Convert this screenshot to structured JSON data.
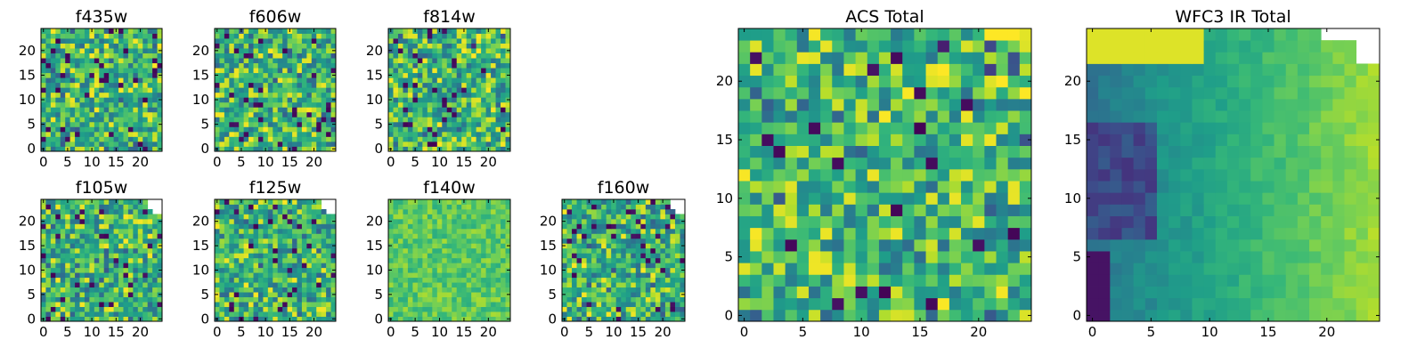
{
  "chart_data": [
    {
      "type": "heatmap",
      "title": "f435w",
      "xticks": [
        0,
        5,
        10,
        15,
        20
      ],
      "yticks": [
        0,
        5,
        10,
        15,
        20
      ],
      "xlim": [
        -0.5,
        24.5
      ],
      "ylim": [
        -0.5,
        24.5
      ],
      "pattern": "noise",
      "seed": 11,
      "colormap": "viridis",
      "grid": false
    },
    {
      "type": "heatmap",
      "title": "f606w",
      "xticks": [
        0,
        5,
        10,
        15,
        20
      ],
      "yticks": [
        0,
        5,
        10,
        15,
        20
      ],
      "xlim": [
        -0.5,
        24.5
      ],
      "ylim": [
        -0.5,
        24.5
      ],
      "pattern": "noise",
      "seed": 23,
      "colormap": "viridis",
      "grid": false
    },
    {
      "type": "heatmap",
      "title": "f814w",
      "xticks": [
        0,
        5,
        10,
        15,
        20
      ],
      "yticks": [
        0,
        5,
        10,
        15,
        20
      ],
      "xlim": [
        -0.5,
        24.5
      ],
      "ylim": [
        -0.5,
        24.5
      ],
      "pattern": "noise-bright-corner",
      "seed": 37,
      "colormap": "viridis",
      "grid": false
    },
    {
      "type": "heatmap",
      "title": "f105w",
      "xticks": [
        0,
        5,
        10,
        15,
        20
      ],
      "yticks": [
        0,
        5,
        10,
        15,
        20
      ],
      "xlim": [
        -0.5,
        24.5
      ],
      "ylim": [
        -0.5,
        24.5
      ],
      "pattern": "noise-masked-corner",
      "seed": 41,
      "colormap": "viridis",
      "grid": false
    },
    {
      "type": "heatmap",
      "title": "f125w",
      "xticks": [
        0,
        5,
        10,
        15,
        20
      ],
      "yticks": [
        0,
        5,
        10,
        15,
        20
      ],
      "xlim": [
        -0.5,
        24.5
      ],
      "ylim": [
        -0.5,
        24.5
      ],
      "pattern": "noise-masked-corner",
      "seed": 53,
      "colormap": "viridis",
      "grid": false
    },
    {
      "type": "heatmap",
      "title": "f140w",
      "xticks": [
        0,
        5,
        10,
        15,
        20
      ],
      "yticks": [
        0,
        5,
        10,
        15,
        20
      ],
      "xlim": [
        -0.5,
        24.5
      ],
      "ylim": [
        -0.5,
        24.5
      ],
      "pattern": "smooth-bright",
      "seed": 67,
      "colormap": "viridis",
      "grid": false
    },
    {
      "type": "heatmap",
      "title": "f160w",
      "xticks": [
        0,
        5,
        10,
        15,
        20
      ],
      "yticks": [
        0,
        5,
        10,
        15,
        20
      ],
      "xlim": [
        -0.5,
        24.5
      ],
      "ylim": [
        -0.5,
        24.5
      ],
      "pattern": "noise-masked-corner",
      "seed": 79,
      "colormap": "viridis",
      "grid": false
    },
    {
      "type": "heatmap",
      "title": "ACS Total",
      "xticks": [
        0,
        5,
        10,
        15,
        20
      ],
      "yticks": [
        0,
        5,
        10,
        15,
        20
      ],
      "xlim": [
        -0.5,
        24.5
      ],
      "ylim": [
        -0.5,
        24.5
      ],
      "pattern": "noise-bright-corner",
      "seed": 97,
      "colormap": "viridis",
      "grid": false
    },
    {
      "type": "heatmap",
      "title": "WFC3 IR Total",
      "xticks": [
        0,
        5,
        10,
        15,
        20
      ],
      "yticks": [
        0,
        5,
        10,
        15,
        20
      ],
      "xlim": [
        -0.5,
        24.5
      ],
      "ylim": [
        -0.5,
        24.5
      ],
      "pattern": "gradient-masked-corner",
      "seed": 113,
      "colormap": "viridis",
      "grid": false
    }
  ]
}
